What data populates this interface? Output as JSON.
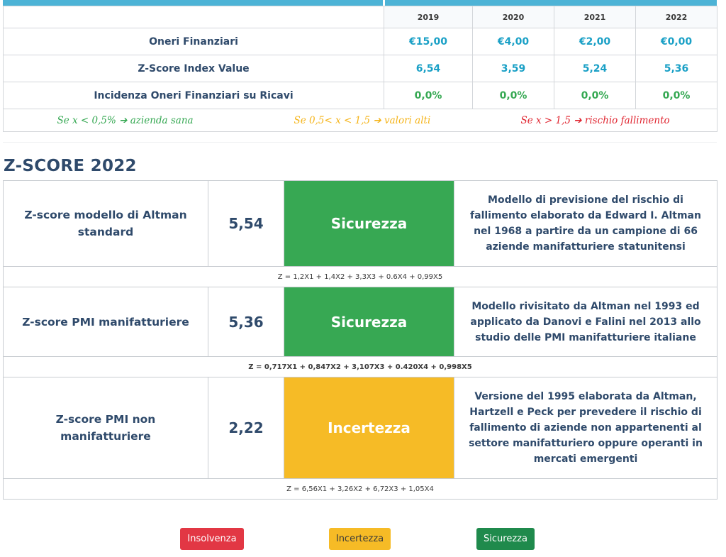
{
  "financial_table": {
    "years": [
      "2019",
      "2020",
      "2021",
      "2022"
    ],
    "rows": [
      {
        "label": "Oneri Finanziari",
        "values": [
          "€15,00",
          "€4,00",
          "€2,00",
          "€0,00"
        ]
      },
      {
        "label": "Z-Score Index Value",
        "values": [
          "6,54",
          "3,59",
          "5,24",
          "5,36"
        ]
      },
      {
        "label": "Incidenza Oneri Finanziari su Ricavi",
        "values": [
          "0,0%",
          "0,0%",
          "0,0%",
          "0,0%"
        ]
      }
    ],
    "legend": {
      "healthy": "Se x < 0,5% ➔ azienda sana",
      "high": "Se 0,5< x < 1,5 ➔ valori alti",
      "failure": "Se x > 1,5 ➔ rischio fallimento"
    }
  },
  "zscore": {
    "title": "Z-SCORE 2022",
    "models": [
      {
        "name": "Z-score modello di Altman standard",
        "score": "5,54",
        "status": "Sicurezza",
        "description": "Modello di previsione del rischio di fallimento elaborato da Edward I. Altman nel 1968 a partire da un campione di 66 aziende manifatturiere statunitensi",
        "formula": "Z = 1,2X1 + 1,4X2 + 3,3X3 + 0.6X4 + 0,99X5"
      },
      {
        "name": "Z-score PMI manifatturiere",
        "score": "5,36",
        "status": "Sicurezza",
        "description": "Modello rivisitato da Altman nel 1993 ed applicato da Danovi e Falini nel 2013 allo studio delle PMI manifatturiere italiane",
        "formula": "Z = 0,717X1 + 0,847X2 + 3,107X3 + 0.420X4 + 0,998X5"
      },
      {
        "name": "Z-score PMI non manifatturiere",
        "score": "2,22",
        "status": "Incertezza",
        "description": "Versione del 1995 elaborata da Altman, Hartzell e Peck per prevedere il rischio di fallimento di aziende non appartenenti al settore manifatturiero oppure operanti in mercati emergenti",
        "formula": "Z = 6,56X1 + 3,26X2 + 6,72X3 + 1,05X4"
      }
    ]
  },
  "buttons": {
    "insolvenza": "Insolvenza",
    "incertezza": "Incertezza",
    "sicurezza": "Sicurezza"
  },
  "colors": {
    "accent_blue": "#4db3d6",
    "value_blue": "#1aa0c6",
    "green": "#37a853",
    "yellow": "#f6bb26",
    "red": "#e23744",
    "dark_green": "#1f8a4c",
    "heading": "#2f4a6b"
  }
}
